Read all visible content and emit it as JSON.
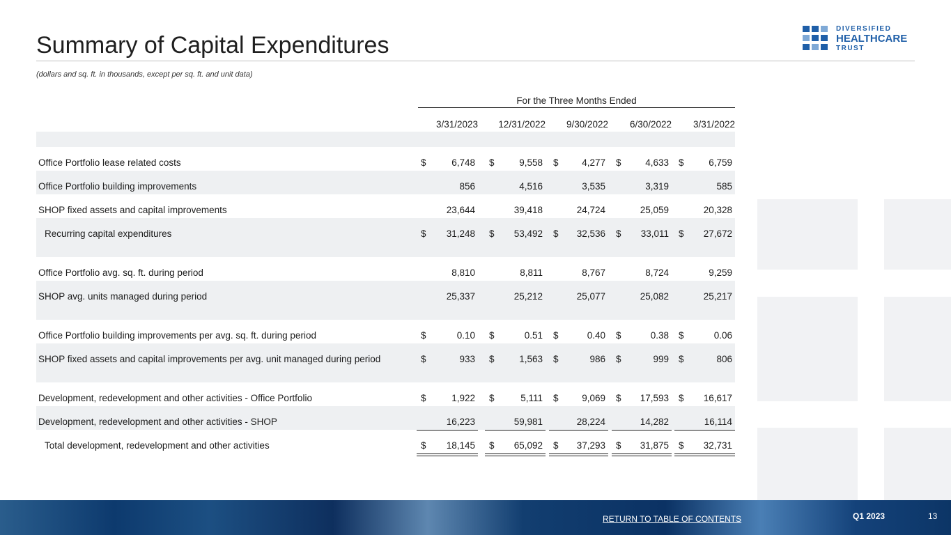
{
  "title": "Summary of Capital Expenditures",
  "subtitle": "(dollars and sq. ft. in thousands, except per sq. ft. and unit data)",
  "logo": {
    "line1": "DIVERSIFIED",
    "line2": "HEALTHCARE",
    "line3": "TRUST"
  },
  "table": {
    "group_header": "For the Three Months Ended",
    "columns": [
      "3/31/2023",
      "12/31/2022",
      "9/30/2022",
      "6/30/2022",
      "3/31/2022"
    ],
    "sections": [
      [
        {
          "label": "Office Portfolio lease related costs",
          "currency": "$",
          "values": [
            "6,748",
            "9,558",
            "4,277",
            "4,633",
            "6,759"
          ]
        },
        {
          "label": "Office Portfolio building improvements",
          "values": [
            "856",
            "4,516",
            "3,535",
            "3,319",
            "585"
          ]
        },
        {
          "label": "SHOP fixed assets and capital improvements",
          "values": [
            "23,644",
            "39,418",
            "24,724",
            "25,059",
            "20,328"
          ],
          "rule": "single"
        },
        {
          "label": "Recurring capital expenditures",
          "currency": "$",
          "values": [
            "31,248",
            "53,492",
            "32,536",
            "33,011",
            "27,672"
          ],
          "rule": "double",
          "indent": true
        }
      ],
      [
        {
          "label": "Office Portfolio avg. sq. ft. during period",
          "values": [
            "8,810",
            "8,811",
            "8,767",
            "8,724",
            "9,259"
          ]
        },
        {
          "label": "SHOP avg. units managed during period",
          "values": [
            "25,337",
            "25,212",
            "25,077",
            "25,082",
            "25,217"
          ]
        }
      ],
      [
        {
          "label": "Office Portfolio building improvements per avg. sq. ft. during period",
          "currency": "$",
          "values": [
            "0.10",
            "0.51",
            "0.40",
            "0.38",
            "0.06"
          ]
        },
        {
          "label": "SHOP fixed assets and capital improvements per avg. unit managed during period",
          "currency": "$",
          "values": [
            "933",
            "1,563",
            "986",
            "999",
            "806"
          ]
        }
      ],
      [
        {
          "label": "Development, redevelopment and other activities - Office Portfolio",
          "currency": "$",
          "values": [
            "1,922",
            "5,111",
            "9,069",
            "17,593",
            "16,617"
          ]
        },
        {
          "label": "Development, redevelopment and other activities - SHOP",
          "values": [
            "16,223",
            "59,981",
            "28,224",
            "14,282",
            "16,114"
          ],
          "rule": "single"
        },
        {
          "label": "Total development, redevelopment and other activities",
          "currency": "$",
          "values": [
            "18,145",
            "65,092",
            "37,293",
            "31,875",
            "32,731"
          ],
          "rule": "double",
          "indent": true
        }
      ]
    ]
  },
  "footer": {
    "link": "RETURN TO TABLE OF CONTENTS",
    "period": "Q1 2023",
    "page": "13"
  }
}
